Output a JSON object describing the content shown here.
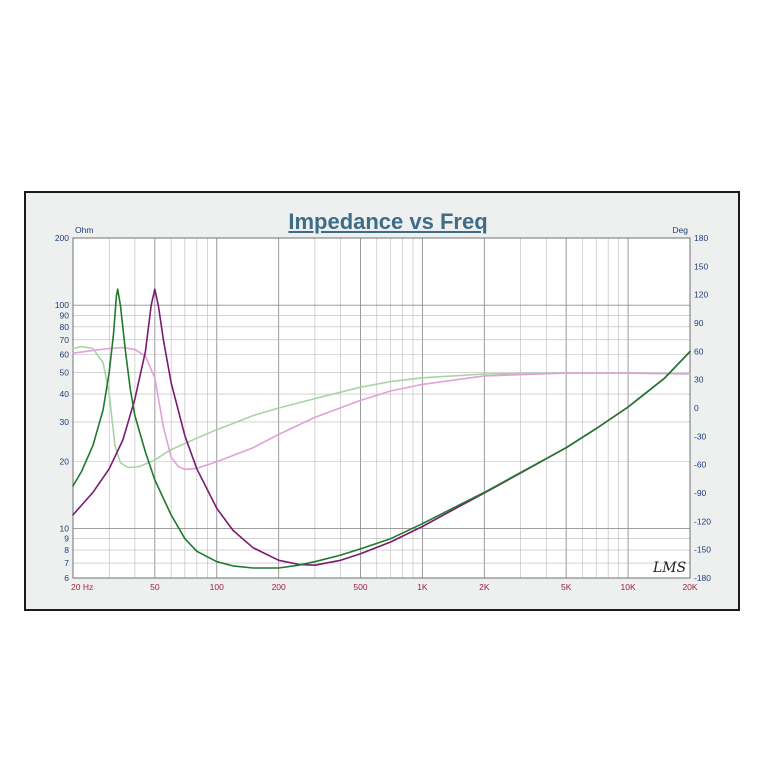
{
  "chart_data": {
    "type": "line",
    "title": "Impedance vs Freq",
    "left_unit": "Ohm",
    "right_unit": "Deg",
    "x_scale": "log",
    "y_left_scale": "log",
    "xlim": [
      20,
      20000
    ],
    "ylim_left": [
      6,
      200
    ],
    "ylim_right": [
      -180,
      180
    ],
    "grid": true,
    "x_ticks": [
      {
        "value": 20,
        "label": "20  Hz"
      },
      {
        "value": 50,
        "label": "50"
      },
      {
        "value": 100,
        "label": "100"
      },
      {
        "value": 200,
        "label": "200"
      },
      {
        "value": 500,
        "label": "500"
      },
      {
        "value": 1000,
        "label": "1K"
      },
      {
        "value": 2000,
        "label": "2K"
      },
      {
        "value": 5000,
        "label": "5K"
      },
      {
        "value": 10000,
        "label": "10K"
      },
      {
        "value": 20000,
        "label": "20K"
      }
    ],
    "y_left_ticks": [
      {
        "value": 200,
        "label": "200"
      },
      {
        "value": 100,
        "label": "100"
      },
      {
        "value": 90,
        "label": "90"
      },
      {
        "value": 80,
        "label": "80"
      },
      {
        "value": 70,
        "label": "70"
      },
      {
        "value": 60,
        "label": "60"
      },
      {
        "value": 50,
        "label": "50"
      },
      {
        "value": 40,
        "label": "40"
      },
      {
        "value": 30,
        "label": "30"
      },
      {
        "value": 20,
        "label": "20"
      },
      {
        "value": 10,
        "label": "10"
      },
      {
        "value": 9,
        "label": "9"
      },
      {
        "value": 8,
        "label": "8"
      },
      {
        "value": 7,
        "label": "7"
      },
      {
        "value": 6,
        "label": "6"
      }
    ],
    "y_right_ticks": [
      {
        "value": 180,
        "label": "180"
      },
      {
        "value": 150,
        "label": "150"
      },
      {
        "value": 120,
        "label": "120"
      },
      {
        "value": 90,
        "label": "90"
      },
      {
        "value": 60,
        "label": "60"
      },
      {
        "value": 30,
        "label": "30"
      },
      {
        "value": 0,
        "label": "0"
      },
      {
        "value": -30,
        "label": "-30"
      },
      {
        "value": -60,
        "label": "-60"
      },
      {
        "value": -90,
        "label": "-90"
      },
      {
        "value": -120,
        "label": "-120"
      },
      {
        "value": -150,
        "label": "-150"
      },
      {
        "value": -180,
        "label": "-180"
      }
    ],
    "series": [
      {
        "color": "#1f7a2e",
        "axis": "left",
        "kind": "impedance",
        "points": [
          [
            20,
            15.5
          ],
          [
            22,
            18
          ],
          [
            25,
            23.5
          ],
          [
            28,
            34
          ],
          [
            30,
            50
          ],
          [
            31.5,
            75
          ],
          [
            32.5,
            110
          ],
          [
            33,
            118
          ],
          [
            34,
            100
          ],
          [
            36,
            62
          ],
          [
            38,
            42
          ],
          [
            40,
            32
          ],
          [
            45,
            22
          ],
          [
            50,
            16.5
          ],
          [
            60,
            11.5
          ],
          [
            70,
            9
          ],
          [
            80,
            7.9
          ],
          [
            100,
            7.1
          ],
          [
            120,
            6.8
          ],
          [
            150,
            6.65
          ],
          [
            200,
            6.65
          ],
          [
            250,
            6.85
          ],
          [
            300,
            7.1
          ],
          [
            400,
            7.6
          ],
          [
            500,
            8.1
          ],
          [
            700,
            9
          ],
          [
            1000,
            10.5
          ],
          [
            1500,
            12.7
          ],
          [
            2000,
            14.5
          ],
          [
            3000,
            17.8
          ],
          [
            5000,
            23
          ],
          [
            7000,
            28
          ],
          [
            10000,
            35
          ],
          [
            15000,
            47
          ],
          [
            20000,
            62
          ]
        ]
      },
      {
        "color": "#7a1a6e",
        "axis": "left",
        "kind": "impedance",
        "points": [
          [
            20,
            11.5
          ],
          [
            25,
            14.5
          ],
          [
            30,
            18.5
          ],
          [
            35,
            25
          ],
          [
            40,
            38
          ],
          [
            45,
            62
          ],
          [
            48,
            100
          ],
          [
            50,
            118
          ],
          [
            52,
            100
          ],
          [
            55,
            70
          ],
          [
            60,
            45
          ],
          [
            70,
            26
          ],
          [
            80,
            18.5
          ],
          [
            100,
            12.3
          ],
          [
            120,
            9.8
          ],
          [
            150,
            8.2
          ],
          [
            200,
            7.2
          ],
          [
            250,
            6.9
          ],
          [
            300,
            6.85
          ],
          [
            400,
            7.2
          ],
          [
            500,
            7.7
          ],
          [
            700,
            8.7
          ],
          [
            1000,
            10.2
          ],
          [
            1500,
            12.5
          ],
          [
            2000,
            14.4
          ],
          [
            3000,
            17.7
          ],
          [
            5000,
            23
          ],
          [
            7000,
            28
          ],
          [
            10000,
            35
          ],
          [
            15000,
            47
          ],
          [
            20000,
            62
          ]
        ]
      },
      {
        "color": "#a8d4a4",
        "axis": "right",
        "kind": "phase",
        "points": [
          [
            20,
            63
          ],
          [
            22,
            65
          ],
          [
            25,
            63
          ],
          [
            28,
            48
          ],
          [
            30,
            15
          ],
          [
            32,
            -40
          ],
          [
            34,
            -58
          ],
          [
            37,
            -63
          ],
          [
            42,
            -62
          ],
          [
            50,
            -55
          ],
          [
            60,
            -44
          ],
          [
            80,
            -32
          ],
          [
            100,
            -23
          ],
          [
            150,
            -8
          ],
          [
            200,
            0
          ],
          [
            300,
            10
          ],
          [
            500,
            22
          ],
          [
            700,
            28
          ],
          [
            1000,
            32
          ],
          [
            2000,
            36
          ],
          [
            5000,
            37
          ],
          [
            10000,
            37
          ],
          [
            20000,
            36
          ]
        ]
      },
      {
        "color": "#e0a0dc",
        "axis": "right",
        "kind": "phase",
        "points": [
          [
            20,
            58
          ],
          [
            25,
            61
          ],
          [
            30,
            63
          ],
          [
            35,
            64
          ],
          [
            40,
            62
          ],
          [
            45,
            55
          ],
          [
            50,
            32
          ],
          [
            55,
            -20
          ],
          [
            60,
            -52
          ],
          [
            65,
            -62
          ],
          [
            70,
            -65
          ],
          [
            80,
            -64
          ],
          [
            100,
            -57
          ],
          [
            150,
            -42
          ],
          [
            200,
            -28
          ],
          [
            300,
            -10
          ],
          [
            500,
            8
          ],
          [
            700,
            18
          ],
          [
            1000,
            25
          ],
          [
            2000,
            34
          ],
          [
            5000,
            37
          ],
          [
            10000,
            37
          ],
          [
            20000,
            36
          ]
        ]
      }
    ],
    "logo": "LMS"
  }
}
